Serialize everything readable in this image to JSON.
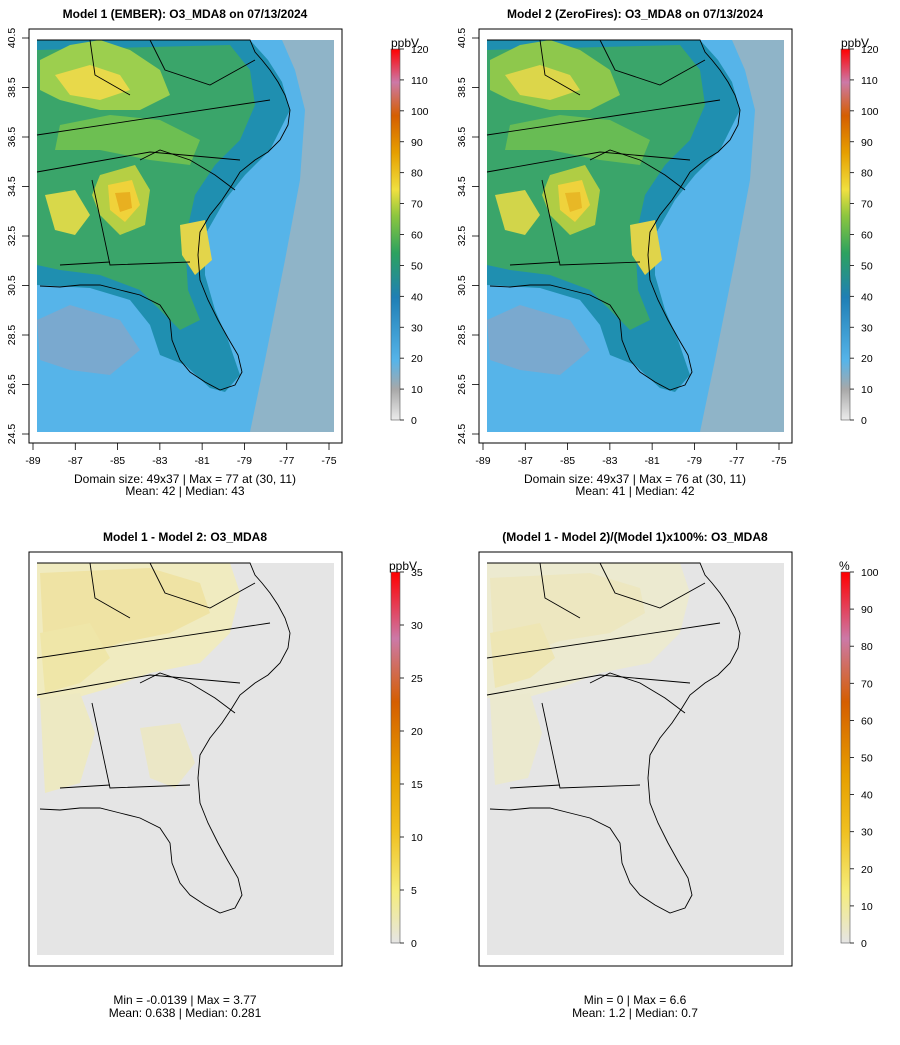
{
  "figure": {
    "panels": [
      {
        "title": "Model 1 (EMBER): O3_MDA8 on 07/13/2024",
        "unit": "ppbV",
        "colorbar_ticks": [
          "0",
          "10",
          "20",
          "30",
          "40",
          "50",
          "60",
          "70",
          "80",
          "90",
          "100",
          "110",
          "120"
        ],
        "x_ticks": [
          "-89",
          "-87",
          "-85",
          "-83",
          "-81",
          "-79",
          "-77",
          "-75"
        ],
        "y_ticks": [
          "24.5",
          "26.5",
          "28.5",
          "30.5",
          "32.5",
          "34.5",
          "36.5",
          "38.5",
          "40.5"
        ],
        "stats_line1": "Domain size: 49x37 | Max = 77 at (30, 11)",
        "stats_line2": "Mean: 42 |  Median: 43"
      },
      {
        "title": "Model 2 (ZeroFires): O3_MDA8 on 07/13/2024",
        "unit": "ppbV",
        "colorbar_ticks": [
          "0",
          "10",
          "20",
          "30",
          "40",
          "50",
          "60",
          "70",
          "80",
          "90",
          "100",
          "110",
          "120"
        ],
        "x_ticks": [
          "-89",
          "-87",
          "-85",
          "-83",
          "-81",
          "-79",
          "-77",
          "-75"
        ],
        "y_ticks": [
          "24.5",
          "26.5",
          "28.5",
          "30.5",
          "32.5",
          "34.5",
          "36.5",
          "38.5",
          "40.5"
        ],
        "stats_line1": "Domain size: 49x37 | Max = 76 at (30, 11)",
        "stats_line2": "Mean: 41 |  Median: 42"
      },
      {
        "title": "Model 1 - Model 2: O3_MDA8",
        "unit": "ppbV",
        "colorbar_ticks": [
          "0",
          "5",
          "10",
          "15",
          "20",
          "25",
          "30",
          "35"
        ],
        "stats_line1": "Min = -0.0139 | Max = 3.77",
        "stats_line2": "Mean: 0.638 |  Median: 0.281"
      },
      {
        "title": "(Model 1 - Model 2)/(Model 1)x100%: O3_MDA8",
        "unit": "%",
        "colorbar_ticks": [
          "0",
          "10",
          "20",
          "30",
          "40",
          "50",
          "60",
          "70",
          "80",
          "90",
          "100"
        ],
        "stats_line1": "Min = 0 | Max = 6.6",
        "stats_line2": "Mean: 1.2 |  Median: 0.7"
      }
    ],
    "colors": {
      "ocean_low": "#56b4e9",
      "mid_blue": "#1f7fb5",
      "green": "#2ca25f",
      "yellow": "#f0e040",
      "orange": "#e69f00",
      "red": "#ff0000",
      "diff_background": "#e5e5e5",
      "diff_low_yellow": "#efe9b0"
    }
  },
  "chart_data": [
    {
      "type": "heatmap",
      "title": "Model 1 (EMBER): O3_MDA8 on 07/13/2024",
      "colorbar_label": "ppbV",
      "grid_size": [
        49,
        37
      ],
      "xlim": [
        -89,
        -75
      ],
      "ylim": [
        24.5,
        40.5
      ],
      "clim": [
        0,
        120
      ],
      "max": 77,
      "max_at": [
        30,
        11
      ],
      "mean": 42,
      "median": 43
    },
    {
      "type": "heatmap",
      "title": "Model 2 (ZeroFires): O3_MDA8 on 07/13/2024",
      "colorbar_label": "ppbV",
      "grid_size": [
        49,
        37
      ],
      "xlim": [
        -89,
        -75
      ],
      "ylim": [
        24.5,
        40.5
      ],
      "clim": [
        0,
        120
      ],
      "max": 76,
      "max_at": [
        30,
        11
      ],
      "mean": 41,
      "median": 42
    },
    {
      "type": "heatmap",
      "title": "Model 1 - Model 2: O3_MDA8",
      "colorbar_label": "ppbV",
      "clim": [
        0,
        35
      ],
      "min": -0.0139,
      "max": 3.77,
      "mean": 0.638,
      "median": 0.281
    },
    {
      "type": "heatmap",
      "title": "(Model 1 - Model 2)/(Model 1)x100%: O3_MDA8",
      "colorbar_label": "%",
      "clim": [
        0,
        100
      ],
      "min": 0,
      "max": 6.6,
      "mean": 1.2,
      "median": 0.7
    }
  ]
}
